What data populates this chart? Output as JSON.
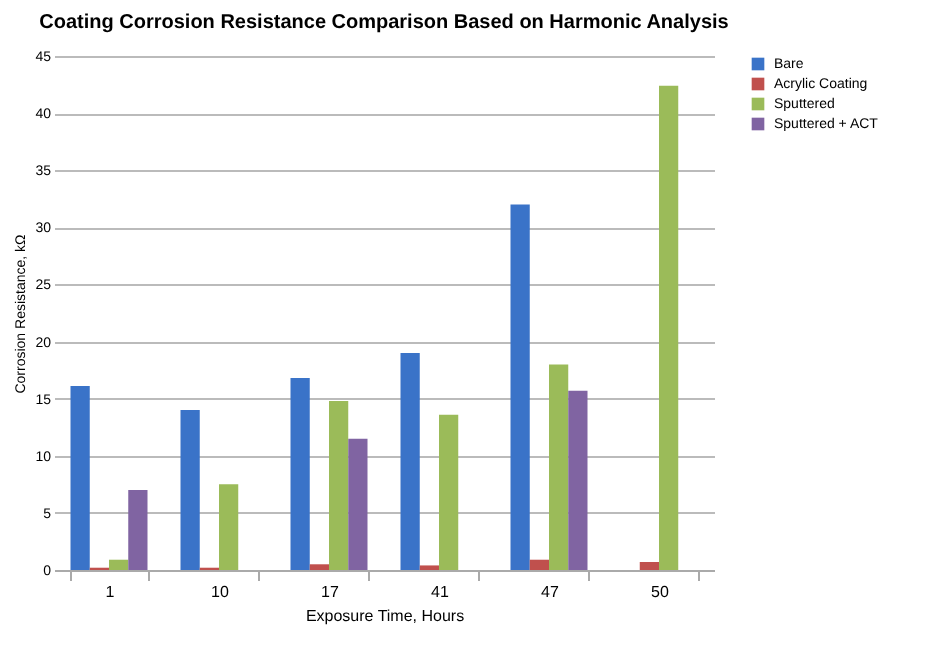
{
  "chart_data": {
    "type": "bar",
    "title": "Coating Corrosion Resistance Comparison Based on Harmonic Analysis",
    "xlabel": "Exposure Time, Hours",
    "ylabel": "Corrosion Resistance, kΩ",
    "categories": [
      "1",
      "10",
      "17",
      "41",
      "47",
      "50"
    ],
    "series": [
      {
        "name": "Bare",
        "color": "#3a73c8",
        "values": [
          16.1,
          14.0,
          16.8,
          19.0,
          32.0,
          null
        ]
      },
      {
        "name": "Acrylic Coating",
        "color": "#c0504d",
        "values": [
          0.2,
          0.2,
          0.5,
          0.4,
          0.9,
          0.7
        ]
      },
      {
        "name": "Sputtered",
        "color": "#9bbb59",
        "values": [
          0.9,
          7.5,
          14.8,
          13.6,
          18.0,
          42.4
        ]
      },
      {
        "name": "Sputtered + ACT",
        "color": "#8064a2",
        "values": [
          7.0,
          null,
          11.5,
          null,
          15.7,
          null
        ]
      }
    ],
    "ylim": [
      0,
      45
    ],
    "yticks": [
      0,
      5,
      10,
      15,
      20,
      25,
      30,
      35,
      40,
      45
    ],
    "grid": "y",
    "legend": "right"
  }
}
